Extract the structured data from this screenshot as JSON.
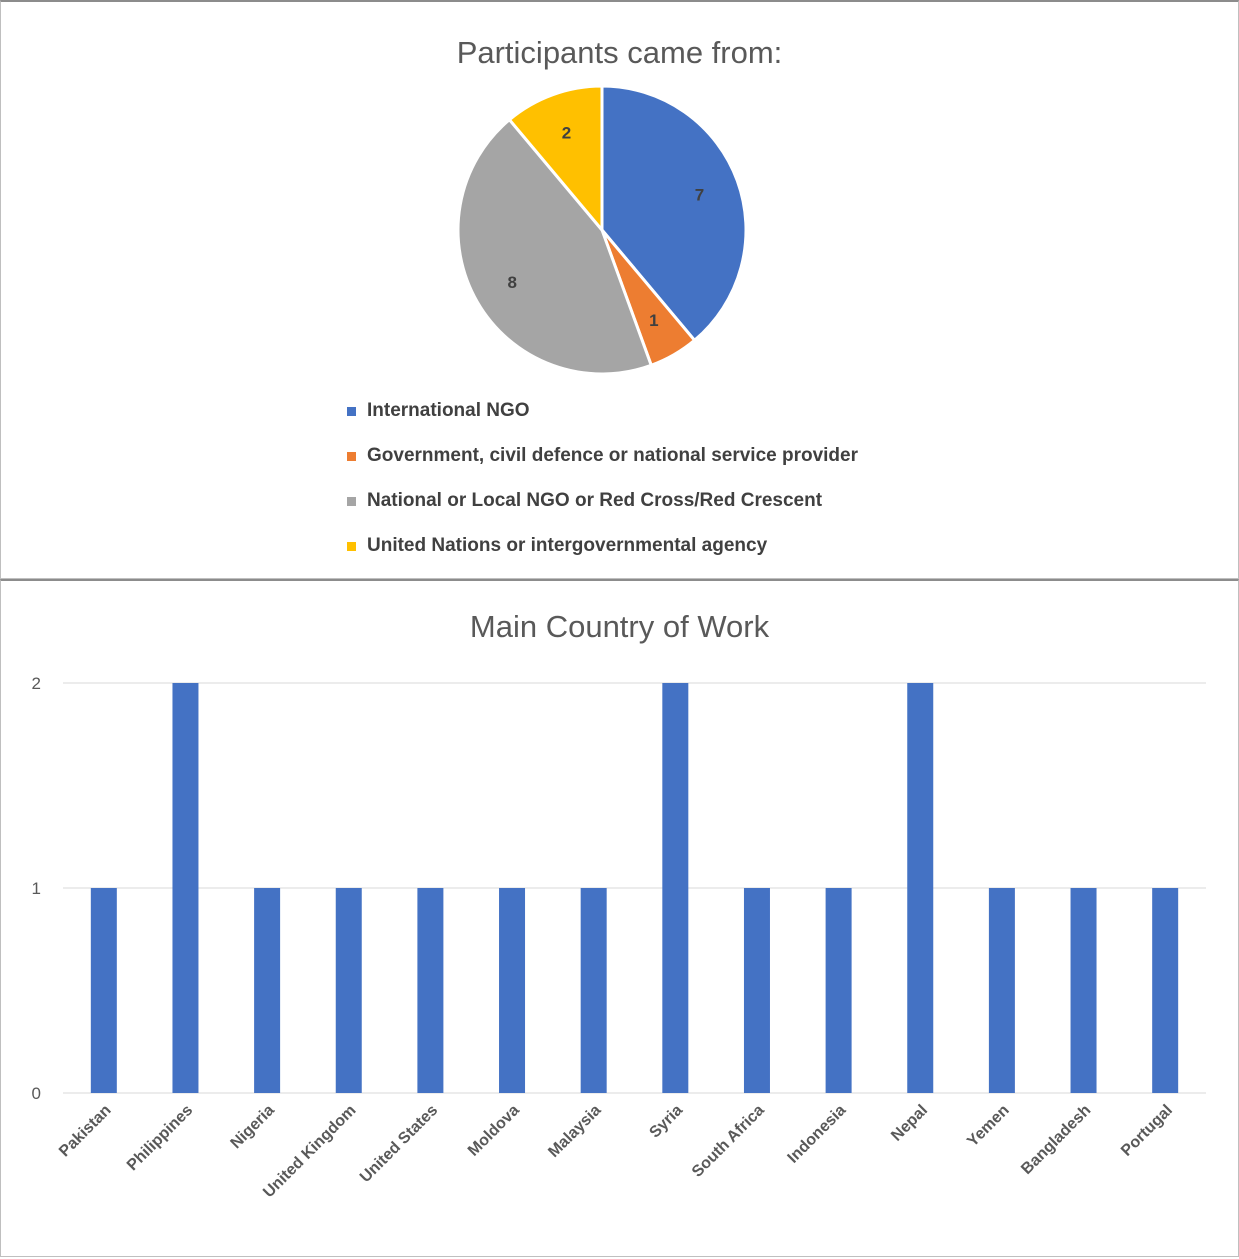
{
  "chart_data": [
    {
      "type": "pie",
      "title": "Participants came from:",
      "categories": [
        "International NGO",
        "Government, civil defence or national service provider",
        "National or Local NGO or Red Cross/Red Crescent",
        "United Nations or intergovernmental agency"
      ],
      "values": [
        7,
        1,
        8,
        2
      ],
      "colors": [
        "#4472C4",
        "#ED7D31",
        "#A5A5A5",
        "#FFC000"
      ],
      "data_labels": [
        "7",
        "1",
        "8",
        "2"
      ],
      "legend_placement": "bottom"
    },
    {
      "type": "bar",
      "title": "Main Country of Work",
      "categories": [
        "Pakistan",
        "Philippines",
        "Nigeria",
        "United Kingdom",
        "United States",
        "Moldova",
        "Malaysia",
        "Syria",
        "South Africa",
        "Indonesia",
        "Nepal",
        "Yemen",
        "Bangladesh",
        "Portugal"
      ],
      "values": [
        1,
        2,
        1,
        1,
        1,
        1,
        1,
        2,
        1,
        1,
        2,
        1,
        1,
        1
      ],
      "ylim": [
        0,
        2
      ],
      "yticks": [
        "0",
        "1",
        "2"
      ],
      "xlabel": "",
      "ylabel": "",
      "grid": true,
      "color": "#4472C4"
    }
  ]
}
